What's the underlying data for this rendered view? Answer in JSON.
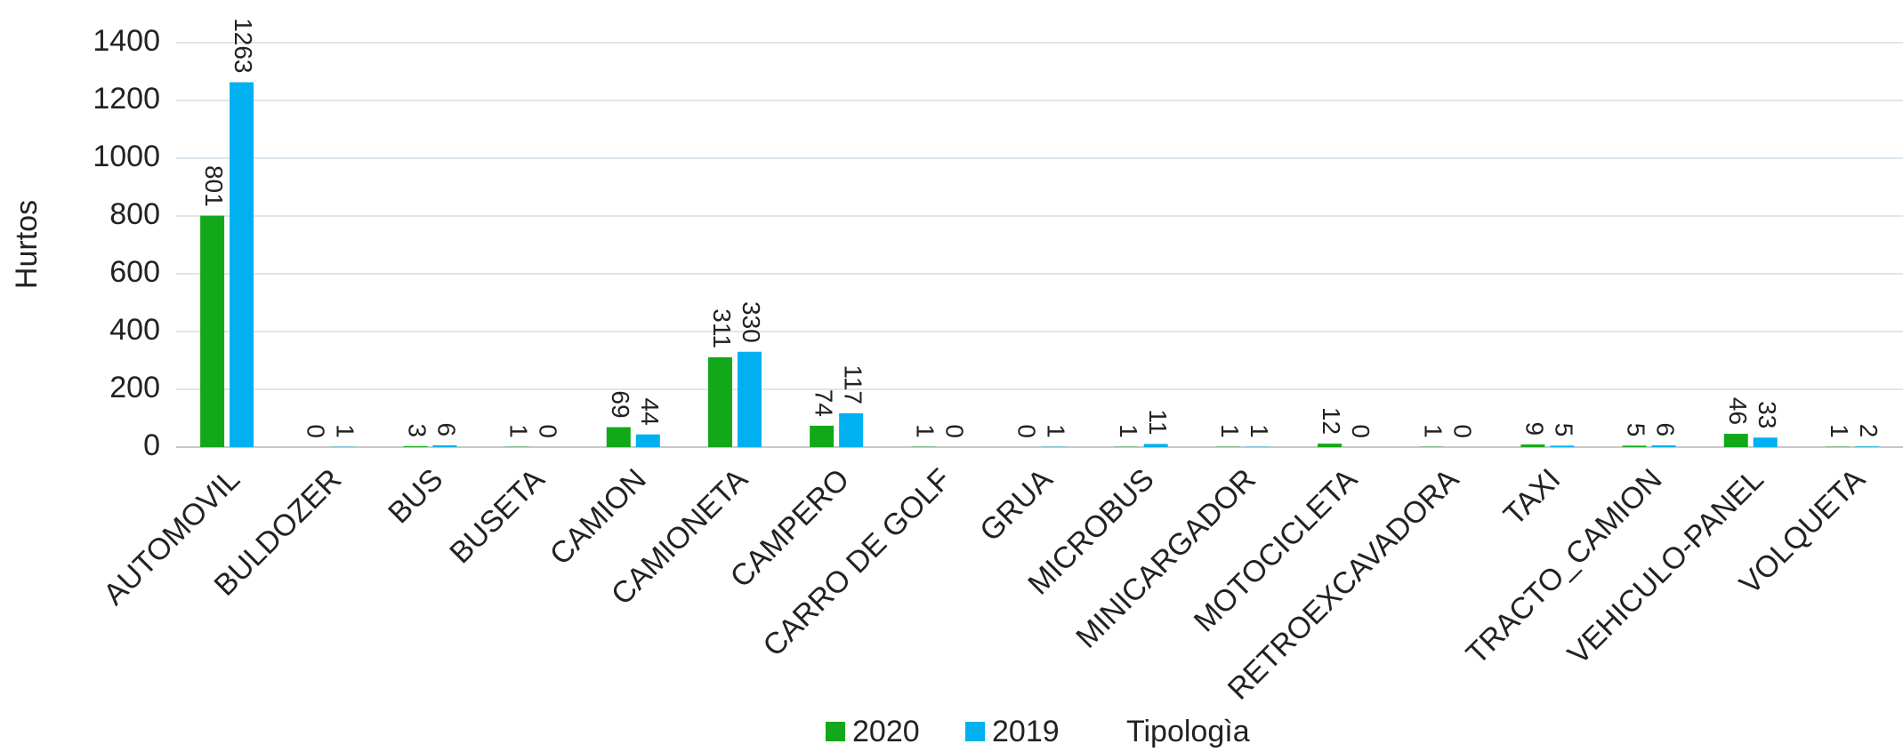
{
  "chart_data": {
    "type": "bar",
    "y_label": "Hurtos",
    "x_label": "Tipologìa",
    "categories": [
      "AUTOMOVIL",
      "BULDOZER",
      "BUS",
      "BUSETA",
      "CAMION",
      "CAMIONETA",
      "CAMPERO",
      "CARRO DE GOLF",
      "GRUA",
      "MICROBUS",
      "MINICARGADOR",
      "MOTOCICLETA",
      "RETROEXCAVADORA",
      "TAXI",
      "TRACTO_CAMION",
      "VEHICULO-PANEL",
      "VOLQUETA"
    ],
    "series": [
      {
        "name": "2020",
        "color": "#12a81a",
        "values": [
          801,
          0,
          3,
          1,
          69,
          311,
          74,
          1,
          0,
          1,
          1,
          12,
          1,
          9,
          5,
          46,
          1
        ]
      },
      {
        "name": "2019",
        "color": "#00b0f0",
        "values": [
          1263,
          1,
          6,
          0,
          44,
          330,
          117,
          0,
          1,
          11,
          1,
          0,
          0,
          5,
          6,
          33,
          2
        ]
      }
    ],
    "ylim": [
      0,
      1400
    ],
    "yticks": [
      0,
      200,
      400,
      600,
      800,
      1000,
      1200,
      1400
    ],
    "grid": true
  }
}
